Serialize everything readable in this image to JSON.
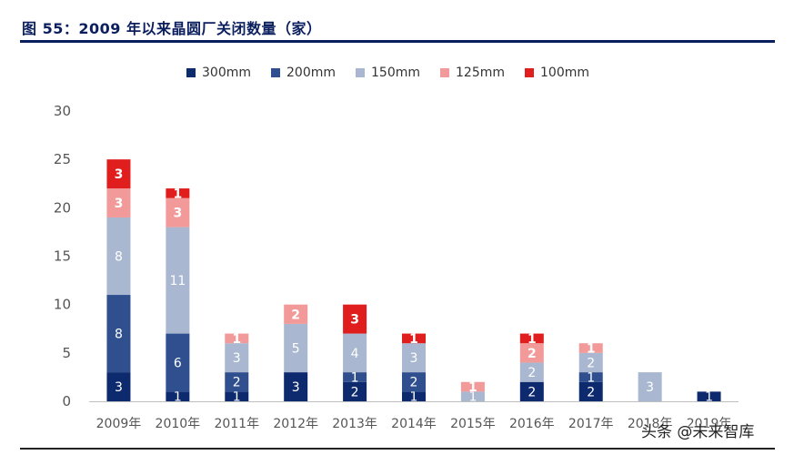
{
  "figure_title": "图 55：2009 年以来晶圆厂关闭数量（家）",
  "watermark": "头条 @未来智库",
  "chart_data": {
    "type": "bar",
    "stacked": true,
    "categories": [
      "2009年",
      "2010年",
      "2011年",
      "2012年",
      "2013年",
      "2014年",
      "2015年",
      "2016年",
      "2017年",
      "2018年",
      "2019年"
    ],
    "ylim": [
      0,
      30
    ],
    "yticks": [
      0,
      5,
      10,
      15,
      20,
      25,
      30
    ],
    "legend_position": "top",
    "grid": false,
    "series": [
      {
        "name": "300mm",
        "color": "#0e2a6e",
        "values": [
          3,
          1,
          1,
          3,
          2,
          1,
          0,
          2,
          2,
          0,
          1
        ]
      },
      {
        "name": "200mm",
        "color": "#2f4f8f",
        "values": [
          8,
          6,
          2,
          0,
          1,
          2,
          0,
          0,
          1,
          0,
          0
        ]
      },
      {
        "name": "150mm",
        "color": "#a9b7d0",
        "values": [
          8,
          11,
          3,
          5,
          4,
          3,
          1,
          2,
          2,
          3,
          0
        ]
      },
      {
        "name": "125mm",
        "color": "#f29a9a",
        "values": [
          3,
          3,
          1,
          2,
          0,
          0,
          1,
          2,
          1,
          0,
          0
        ]
      },
      {
        "name": "100mm",
        "color": "#e01e1e",
        "values": [
          3,
          1,
          0,
          0,
          3,
          1,
          0,
          1,
          0,
          0,
          0
        ]
      }
    ]
  }
}
